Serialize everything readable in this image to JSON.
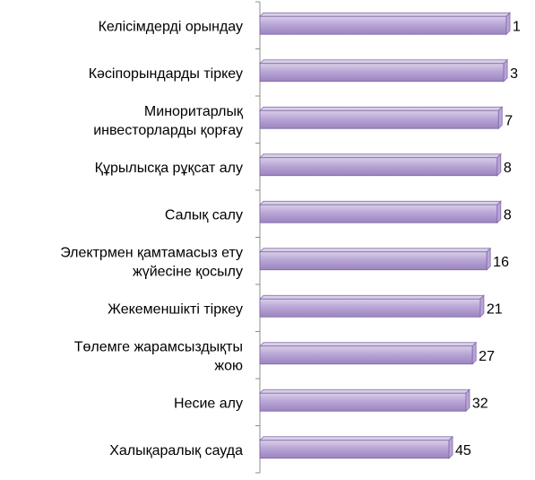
{
  "chart_data": {
    "type": "bar",
    "orientation": "horizontal",
    "categories": [
      [
        "Келісімдерді орындау"
      ],
      [
        "Кәсіпорындарды тіркеу"
      ],
      [
        "Миноритарлық",
        "инвесторларды қорғау"
      ],
      [
        "Құрылысқа рұқсат алу"
      ],
      [
        "Салық салу"
      ],
      [
        "Электрмен қамтамасыз ету",
        "жүйесіне қосылу"
      ],
      [
        "Жекеменшікті тіркеу"
      ],
      [
        "Төлемге жарамсыздықты",
        "жою"
      ],
      [
        "Несие алу"
      ],
      [
        "Халықаралық сауда"
      ]
    ],
    "values": [
      1,
      3,
      7,
      8,
      8,
      16,
      21,
      27,
      32,
      45
    ],
    "data_labels": [
      "1",
      "3",
      "7",
      "8",
      "8",
      "16",
      "21",
      "27",
      "32",
      "45"
    ],
    "axis": "reversed",
    "grid": false,
    "legend": "none",
    "colors": {
      "bar_fill_top": "#d9cfe8",
      "bar_fill_mid": "#b9a6d6",
      "bar_fill_bottom": "#9a84bf",
      "bar_stroke": "#7e68a6",
      "axis": "#8c8c8c"
    }
  }
}
